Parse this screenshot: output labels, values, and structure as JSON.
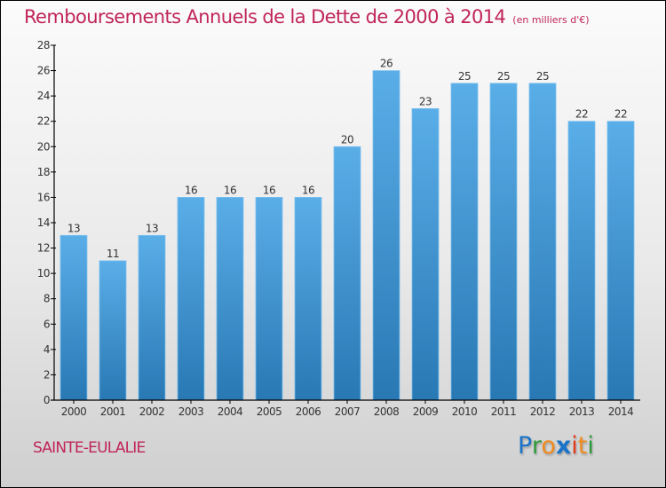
{
  "chart_data": {
    "type": "bar",
    "title": "Remboursements Annuels de la Dette de 2000 à 2014",
    "subtitle": "(en milliers d'€)",
    "xlabel": "",
    "ylabel": "",
    "categories": [
      "2000",
      "2001",
      "2002",
      "2003",
      "2004",
      "2005",
      "2006",
      "2007",
      "2008",
      "2009",
      "2010",
      "2011",
      "2012",
      "2013",
      "2014"
    ],
    "values": [
      13,
      11,
      13,
      16,
      16,
      16,
      16,
      20,
      26,
      23,
      25,
      25,
      25,
      22,
      22
    ],
    "ylim": [
      0,
      28
    ],
    "yticks": [
      0,
      2,
      4,
      6,
      8,
      10,
      12,
      14,
      16,
      18,
      20,
      22,
      24,
      26,
      28
    ],
    "grid": false,
    "legend": "none",
    "bar_color_top": "#5aaee8",
    "bar_color_bottom": "#2878b4"
  },
  "footer": {
    "commune": "SAINTE-EULALIE",
    "logo": {
      "letters": [
        {
          "char": "P",
          "color": "#1a73c8"
        },
        {
          "char": "r",
          "color": "#2e9a3a"
        },
        {
          "char": "o",
          "color": "#f08a1c"
        },
        {
          "char": "x",
          "color": "#1a73c8"
        },
        {
          "char": "i",
          "color": "#e03c1c"
        },
        {
          "char": "t",
          "color": "#f08a1c"
        },
        {
          "char": "i",
          "color": "#2e9a3a"
        }
      ]
    }
  },
  "colors": {
    "title": "#c0245a",
    "axis": "#000000",
    "text": "#333333"
  }
}
